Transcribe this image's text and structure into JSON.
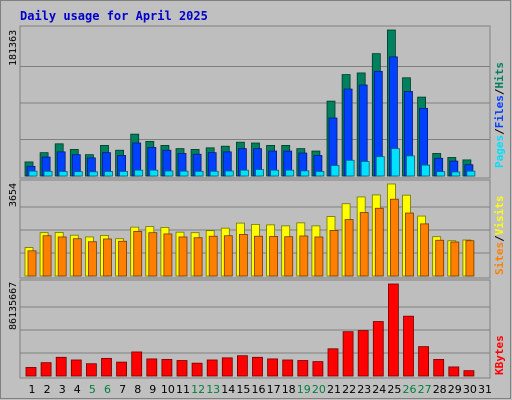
{
  "title": "Daily usage for April 2025",
  "colors": {
    "frame_bg": "#c0c0c0",
    "plot_bg": "#bebebe",
    "title": "#0000cc",
    "hits": "#00805c",
    "files": "#0040ff",
    "pages": "#00e0ff",
    "visits": "#ffff00",
    "sites": "#ff8000",
    "kbytes": "#ff0000",
    "weekday_label": "#000000",
    "weekend_label": "#008040"
  },
  "chart_data": [
    {
      "type": "bar",
      "name": "hits-files-pages",
      "ymax_label": "181363",
      "ymax": 181363,
      "legend": [
        "Pages",
        "/",
        "Files",
        "/",
        "Hits"
      ],
      "categories": [
        "1",
        "2",
        "3",
        "4",
        "5",
        "6",
        "7",
        "8",
        "9",
        "10",
        "11",
        "12",
        "13",
        "14",
        "15",
        "16",
        "17",
        "18",
        "19",
        "20",
        "21",
        "22",
        "23",
        "24",
        "25",
        "26",
        "27",
        "28",
        "29",
        "30",
        "31"
      ],
      "weekend_days": [
        5,
        6,
        12,
        13,
        19,
        20,
        26,
        27
      ],
      "series": [
        {
          "name": "Hits",
          "values": [
            17500,
            29000,
            40000,
            33000,
            26500,
            38000,
            32000,
            52000,
            43000,
            38000,
            34000,
            33000,
            35000,
            37000,
            42000,
            41000,
            38000,
            38000,
            34000,
            31000,
            93000,
            126000,
            128000,
            152000,
            181363,
            122000,
            98000,
            28000,
            23000,
            20000,
            0
          ]
        },
        {
          "name": "Files",
          "values": [
            12000,
            23500,
            30000,
            26500,
            22500,
            29000,
            25500,
            41000,
            35500,
            32000,
            28000,
            27000,
            29000,
            30000,
            34000,
            34000,
            31000,
            31000,
            28500,
            25500,
            72000,
            108000,
            113000,
            130000,
            148000,
            105000,
            84000,
            22000,
            18500,
            14000,
            0
          ]
        },
        {
          "name": "Pages",
          "values": [
            6000,
            5800,
            5600,
            5400,
            5200,
            5600,
            5600,
            7200,
            7200,
            6200,
            6000,
            5800,
            5800,
            6200,
            7200,
            8000,
            7200,
            7200,
            6400,
            5600,
            13000,
            19500,
            18000,
            24000,
            34000,
            25000,
            13500,
            5400,
            5000,
            6000,
            0
          ]
        }
      ]
    },
    {
      "type": "bar",
      "name": "visits-sites",
      "ymax_label": "3654",
      "ymax": 3654,
      "legend": [
        "Sites",
        "/",
        "Visits"
      ],
      "categories": [
        "1",
        "2",
        "3",
        "4",
        "5",
        "6",
        "7",
        "8",
        "9",
        "10",
        "11",
        "12",
        "13",
        "14",
        "15",
        "16",
        "17",
        "18",
        "19",
        "20",
        "21",
        "22",
        "23",
        "24",
        "25",
        "26",
        "27",
        "28",
        "29",
        "30",
        "31"
      ],
      "series": [
        {
          "name": "Visits",
          "values": [
            1130,
            1720,
            1730,
            1620,
            1550,
            1610,
            1480,
            1940,
            1960,
            1930,
            1740,
            1720,
            1800,
            1900,
            2100,
            2050,
            2030,
            1990,
            2110,
            1990,
            2360,
            2870,
            3140,
            3220,
            3654,
            3210,
            2380,
            1560,
            1400,
            1430,
            0
          ]
        },
        {
          "name": "Sites",
          "values": [
            1000,
            1600,
            1550,
            1480,
            1360,
            1470,
            1380,
            1770,
            1720,
            1670,
            1550,
            1520,
            1580,
            1600,
            1650,
            1580,
            1570,
            1560,
            1590,
            1550,
            1810,
            2240,
            2520,
            2690,
            3050,
            2500,
            2070,
            1420,
            1350,
            1400,
            0
          ]
        }
      ]
    },
    {
      "type": "bar",
      "name": "kbytes",
      "ymax_label": "86135667",
      "ymax": 86135667,
      "legend": [
        "KBytes"
      ],
      "categories": [
        "1",
        "2",
        "3",
        "4",
        "5",
        "6",
        "7",
        "8",
        "9",
        "10",
        "11",
        "12",
        "13",
        "14",
        "15",
        "16",
        "17",
        "18",
        "19",
        "20",
        "21",
        "22",
        "23",
        "24",
        "25",
        "26",
        "27",
        "28",
        "29",
        "30",
        "31"
      ],
      "series": [
        {
          "name": "KBytes",
          "values": [
            8000000,
            12500000,
            17500000,
            15000000,
            11500000,
            16500000,
            13000000,
            22500000,
            16000000,
            15500000,
            14500000,
            12000000,
            15000000,
            17000000,
            19000000,
            17500000,
            16000000,
            15000000,
            14500000,
            13500000,
            25500000,
            41500000,
            42500000,
            51000000,
            86135667,
            56000000,
            27500000,
            15500000,
            8500000,
            5000000,
            0
          ]
        }
      ]
    }
  ]
}
